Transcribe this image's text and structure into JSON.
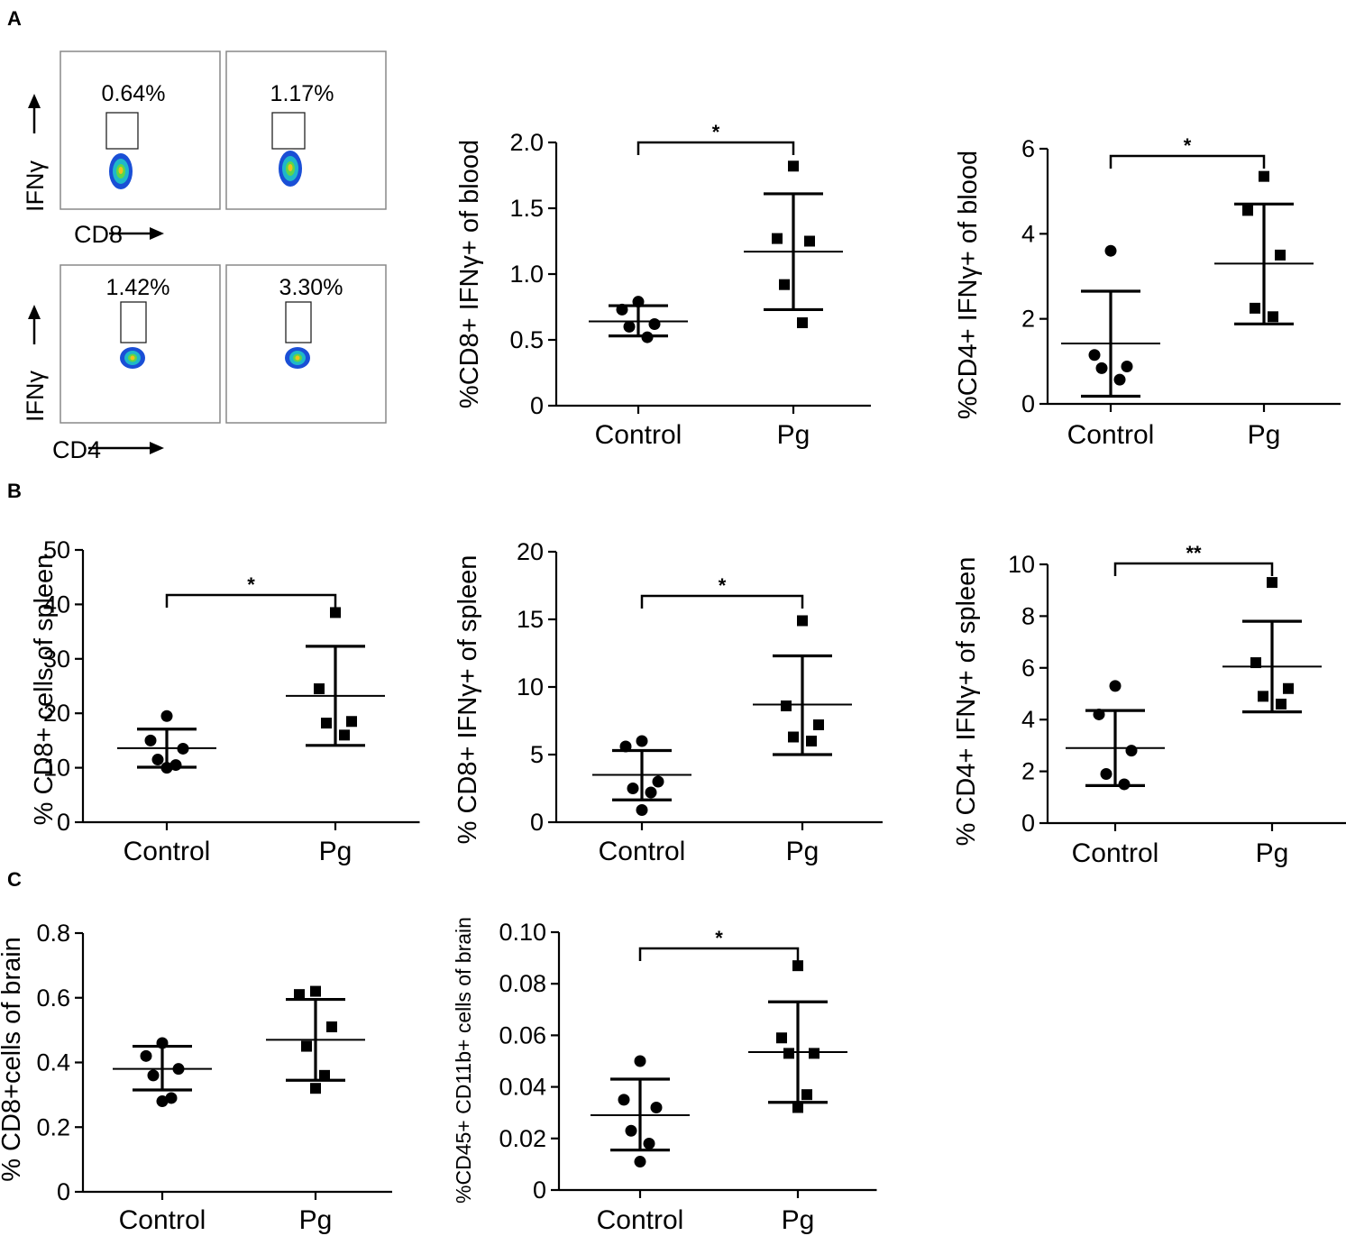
{
  "panel_labels": {
    "a": "A",
    "b": "B",
    "c": "C"
  },
  "flow": {
    "row1": {
      "xaxis": "CD8",
      "yaxis": "IFNγ",
      "control_pct": "0.64%",
      "pg_pct": "1.17%"
    },
    "row2": {
      "xaxis": "CD4",
      "yaxis": "IFNγ",
      "control_pct": "1.42%",
      "pg_pct": "3.30%"
    }
  },
  "colors": {
    "marker": "#000000",
    "axis": "#000000",
    "flow_box": "#888888"
  },
  "chart_data": [
    {
      "id": "a2",
      "type": "scatter",
      "title": "",
      "ylabel": "%CD8+ IFNγ+ of blood",
      "xlabel": "",
      "categories": [
        "Control",
        "Pg"
      ],
      "ylim": [
        0,
        2.0
      ],
      "yticks": [
        0,
        0.5,
        1.0,
        1.5,
        2.0
      ],
      "ytick_labels": [
        "0",
        "0.5",
        "1.0",
        "1.5",
        "2.0"
      ],
      "series": [
        {
          "name": "Control",
          "marker": "circle",
          "values": [
            0.79,
            0.73,
            0.62,
            0.6,
            0.52
          ],
          "mean": 0.64,
          "sd_low": 0.53,
          "sd_high": 0.76
        },
        {
          "name": "Pg",
          "marker": "square",
          "values": [
            1.82,
            1.27,
            1.25,
            0.92,
            0.63
          ],
          "mean": 1.17,
          "sd_low": 0.73,
          "sd_high": 1.61
        }
      ],
      "significance": "*"
    },
    {
      "id": "a3",
      "type": "scatter",
      "title": "",
      "ylabel": "%CD4+ IFNγ+ of blood",
      "xlabel": "",
      "categories": [
        "Control",
        "Pg"
      ],
      "ylim": [
        0,
        6
      ],
      "yticks": [
        0,
        2,
        4,
        6
      ],
      "ytick_labels": [
        "0",
        "2",
        "4",
        "6"
      ],
      "series": [
        {
          "name": "Control",
          "marker": "circle",
          "values": [
            3.6,
            1.15,
            0.88,
            0.84,
            0.57
          ],
          "mean": 1.42,
          "sd_low": 0.18,
          "sd_high": 2.65
        },
        {
          "name": "Pg",
          "marker": "square",
          "values": [
            5.35,
            4.55,
            3.5,
            2.25,
            2.05
          ],
          "mean": 3.3,
          "sd_low": 1.88,
          "sd_high": 4.7
        }
      ],
      "significance": "*"
    },
    {
      "id": "b1",
      "type": "scatter",
      "title": "",
      "ylabel": "% CD8+ cells of spleen",
      "xlabel": "",
      "categories": [
        "Control",
        "Pg"
      ],
      "ylim": [
        0,
        50
      ],
      "yticks": [
        0,
        10,
        20,
        30,
        40,
        50
      ],
      "ytick_labels": [
        "0",
        "10",
        "20",
        "30",
        "40",
        "50"
      ],
      "series": [
        {
          "name": "Control",
          "marker": "circle",
          "values": [
            19.5,
            15.0,
            13.5,
            11.5,
            10.5,
            10.0
          ],
          "mean": 13.6,
          "sd_low": 10.1,
          "sd_high": 17.1
        },
        {
          "name": "Pg",
          "marker": "square",
          "values": [
            38.5,
            24.5,
            18.5,
            18.2,
            16.0
          ],
          "mean": 23.2,
          "sd_low": 14.1,
          "sd_high": 32.3
        }
      ],
      "significance": "*"
    },
    {
      "id": "b2",
      "type": "scatter",
      "title": "",
      "ylabel": "% CD8+ IFNγ+ of spleen",
      "xlabel": "",
      "categories": [
        "Control",
        "Pg"
      ],
      "ylim": [
        0,
        20
      ],
      "yticks": [
        0,
        5,
        10,
        15,
        20
      ],
      "ytick_labels": [
        "0",
        "5",
        "10",
        "15",
        "20"
      ],
      "series": [
        {
          "name": "Control",
          "marker": "circle",
          "values": [
            6.0,
            5.6,
            3.0,
            2.5,
            2.2,
            0.9
          ],
          "mean": 3.5,
          "sd_low": 1.65,
          "sd_high": 5.3
        },
        {
          "name": "Pg",
          "marker": "square",
          "values": [
            14.9,
            8.6,
            7.2,
            6.3,
            6.0
          ],
          "mean": 8.7,
          "sd_low": 5.0,
          "sd_high": 12.3
        }
      ],
      "significance": "*"
    },
    {
      "id": "b3",
      "type": "scatter",
      "title": "",
      "ylabel": "% CD4+ IFNγ+ of spleen",
      "xlabel": "",
      "categories": [
        "Control",
        "Pg"
      ],
      "ylim": [
        0,
        10
      ],
      "yticks": [
        0,
        2,
        4,
        6,
        8,
        10
      ],
      "ytick_labels": [
        "0",
        "2",
        "4",
        "6",
        "8",
        "10"
      ],
      "series": [
        {
          "name": "Control",
          "marker": "circle",
          "values": [
            5.3,
            4.2,
            2.8,
            1.9,
            1.5
          ],
          "mean": 2.9,
          "sd_low": 1.45,
          "sd_high": 4.35
        },
        {
          "name": "Pg",
          "marker": "square",
          "values": [
            9.3,
            6.2,
            5.2,
            4.9,
            4.6
          ],
          "mean": 6.05,
          "sd_low": 4.3,
          "sd_high": 7.8
        }
      ],
      "significance": "**"
    },
    {
      "id": "c1",
      "type": "scatter",
      "title": "",
      "ylabel": "% CD8+cells of brain",
      "xlabel": "",
      "categories": [
        "Control",
        "Pg"
      ],
      "ylim": [
        0,
        0.8
      ],
      "yticks": [
        0,
        0.2,
        0.4,
        0.6,
        0.8
      ],
      "ytick_labels": [
        "0",
        "0.2",
        "0.4",
        "0.6",
        "0.8"
      ],
      "series": [
        {
          "name": "Control",
          "marker": "circle",
          "values": [
            0.46,
            0.42,
            0.38,
            0.36,
            0.29,
            0.28
          ],
          "mean": 0.38,
          "sd_low": 0.315,
          "sd_high": 0.45
        },
        {
          "name": "Pg",
          "marker": "square",
          "values": [
            0.62,
            0.61,
            0.51,
            0.45,
            0.36,
            0.32
          ],
          "mean": 0.47,
          "sd_low": 0.345,
          "sd_high": 0.595
        }
      ],
      "significance": ""
    },
    {
      "id": "c2",
      "type": "scatter",
      "title": "",
      "ylabel": "%CD45+ CD11b+ cells of brain",
      "xlabel": "",
      "categories": [
        "Control",
        "Pg"
      ],
      "ylim": [
        0,
        0.1
      ],
      "yticks": [
        0,
        0.02,
        0.04,
        0.06,
        0.08,
        0.1
      ],
      "ytick_labels": [
        "0",
        "0.02",
        "0.04",
        "0.06",
        "0.08",
        "0.10"
      ],
      "series": [
        {
          "name": "Control",
          "marker": "circle",
          "values": [
            0.05,
            0.035,
            0.032,
            0.023,
            0.018,
            0.011
          ],
          "mean": 0.029,
          "sd_low": 0.0155,
          "sd_high": 0.043
        },
        {
          "name": "Pg",
          "marker": "square",
          "values": [
            0.087,
            0.059,
            0.053,
            0.053,
            0.037,
            0.032
          ],
          "mean": 0.0535,
          "sd_low": 0.034,
          "sd_high": 0.073
        }
      ],
      "significance": "*"
    }
  ]
}
